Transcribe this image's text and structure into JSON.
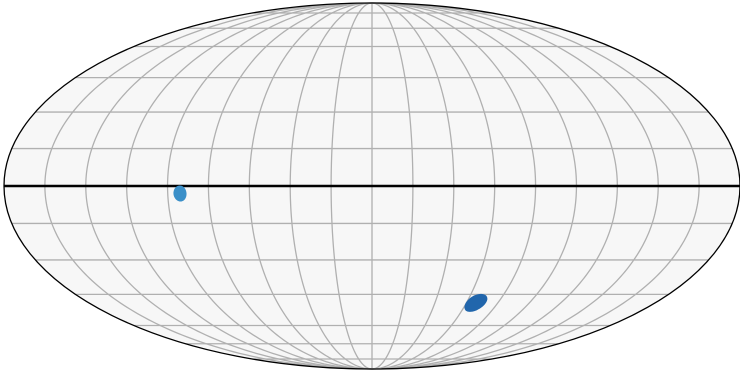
{
  "projection": "mollweide",
  "colors": {
    "background": "#f7f7f7",
    "outline": "#000000",
    "grid": "#b0b0b0",
    "equator": "#000000"
  },
  "graticule": {
    "longitude_step_deg": 20,
    "latitude_lines_deg": [
      -80,
      -70,
      -60,
      -45,
      -30,
      -15,
      0,
      15,
      30,
      45,
      60,
      70,
      80
    ]
  },
  "highlight_parallel_deg": 0,
  "markers": [
    {
      "name": "marker-left",
      "lon_deg": -94,
      "lat_deg": -3,
      "color": "#3a8fc8"
    },
    {
      "name": "marker-lower-right",
      "lon_deg": 66,
      "lat_deg": -49,
      "color": "#2166ac"
    }
  ]
}
